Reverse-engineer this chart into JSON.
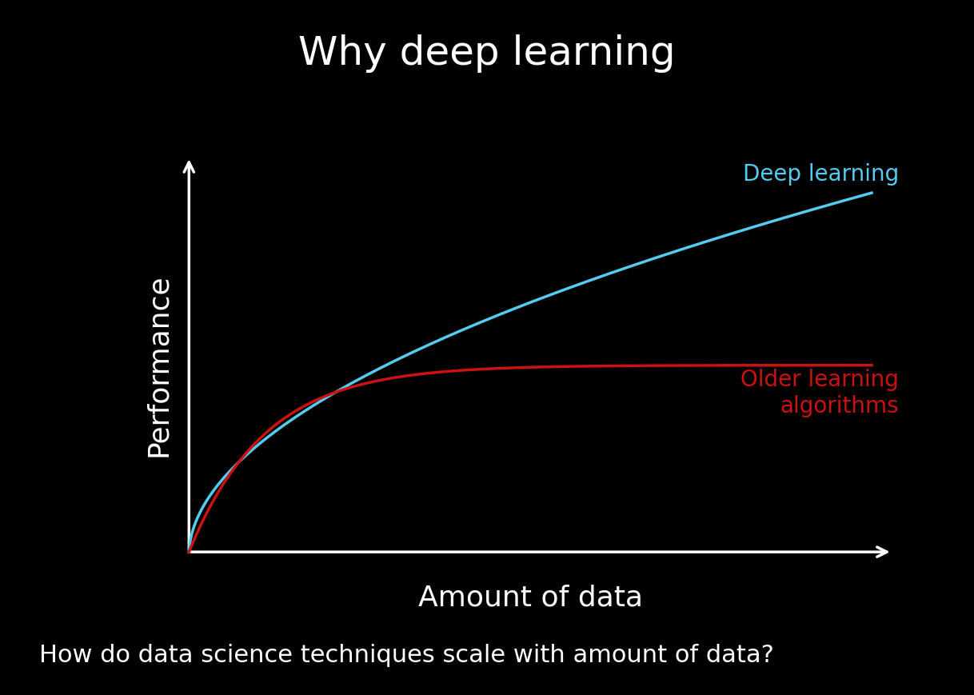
{
  "title": "Why deep learning",
  "title_color": "#ffffff",
  "title_fontsize": 36,
  "xlabel": "Amount of data",
  "xlabel_color": "#ffffff",
  "xlabel_fontsize": 26,
  "ylabel": "Performance",
  "ylabel_color": "#ffffff",
  "ylabel_fontsize": 26,
  "background_color": "#000000",
  "deep_learning_color": "#55ccee",
  "older_algo_color": "#cc1111",
  "deep_learning_label": "Deep learning",
  "older_algo_label": "Older learning\nalgorithms",
  "label_fontsize": 20,
  "axis_color": "#ffffff",
  "axis_linewidth": 2.5,
  "line_linewidth": 2.5,
  "subtitle": "How do data science techniques scale with amount of data?",
  "subtitle_color": "#ffffff",
  "subtitle_fontsize": 22
}
